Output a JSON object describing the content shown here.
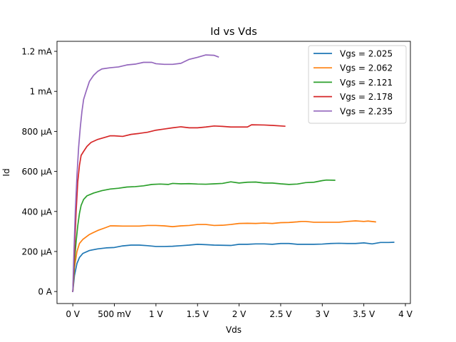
{
  "chart_data": {
    "type": "line",
    "title": "Id vs Vds",
    "xlabel": "Vds",
    "ylabel": "Id",
    "xlim": [
      -0.19,
      4.06
    ],
    "ylim": [
      -6e-05,
      0.00125
    ],
    "grid": false,
    "legend_position": "top-right",
    "x_ticks": [
      {
        "value": 0,
        "label": "0 V"
      },
      {
        "value": 0.5,
        "label": "500 mV"
      },
      {
        "value": 1,
        "label": "1 V"
      },
      {
        "value": 1.5,
        "label": "1.5 V"
      },
      {
        "value": 2,
        "label": "2 V"
      },
      {
        "value": 2.5,
        "label": "2.5 V"
      },
      {
        "value": 3,
        "label": "3 V"
      },
      {
        "value": 3.5,
        "label": "3.5 V"
      },
      {
        "value": 4,
        "label": "4 V"
      }
    ],
    "y_ticks": [
      {
        "value": 0,
        "label": "0 A"
      },
      {
        "value": 0.0002,
        "label": "200 µA"
      },
      {
        "value": 0.0004,
        "label": "400 µA"
      },
      {
        "value": 0.0006,
        "label": "600 µA"
      },
      {
        "value": 0.0008,
        "label": "800 µA"
      },
      {
        "value": 0.001,
        "label": "1 mA"
      },
      {
        "value": 0.0012,
        "label": "1.2 mA"
      }
    ],
    "series": [
      {
        "name": "Vgs = 2.025",
        "color": "#1f77b4",
        "points": [
          [
            0,
            0
          ],
          [
            0.02,
            8e-05
          ],
          [
            0.05,
            0.00014
          ],
          [
            0.08,
            0.00017
          ],
          [
            0.12,
            0.00019
          ],
          [
            0.2,
            0.000205
          ],
          [
            0.3,
            0.000213
          ],
          [
            0.4,
            0.000218
          ],
          [
            0.5,
            0.00022
          ],
          [
            0.6,
            0.000228
          ],
          [
            0.7,
            0.000232
          ],
          [
            0.8,
            0.000232
          ],
          [
            0.9,
            0.000229
          ],
          [
            1.0,
            0.000225
          ],
          [
            1.1,
            0.000225
          ],
          [
            1.2,
            0.000226
          ],
          [
            1.3,
            0.000229
          ],
          [
            1.4,
            0.000232
          ],
          [
            1.5,
            0.000236
          ],
          [
            1.6,
            0.000234
          ],
          [
            1.7,
            0.000232
          ],
          [
            1.8,
            0.000231
          ],
          [
            1.9,
            0.00023
          ],
          [
            2.0,
            0.000236
          ],
          [
            2.1,
            0.000236
          ],
          [
            2.2,
            0.000238
          ],
          [
            2.3,
            0.000238
          ],
          [
            2.4,
            0.000236
          ],
          [
            2.5,
            0.00024
          ],
          [
            2.6,
            0.00024
          ],
          [
            2.7,
            0.000236
          ],
          [
            2.8,
            0.000236
          ],
          [
            2.9,
            0.000236
          ],
          [
            3.0,
            0.000237
          ],
          [
            3.1,
            0.00024
          ],
          [
            3.2,
            0.000241
          ],
          [
            3.3,
            0.00024
          ],
          [
            3.4,
            0.00024
          ],
          [
            3.5,
            0.000243
          ],
          [
            3.6,
            0.000238
          ],
          [
            3.7,
            0.000245
          ],
          [
            3.8,
            0.000245
          ],
          [
            3.86,
            0.000246
          ]
        ]
      },
      {
        "name": "Vgs = 2.062",
        "color": "#ff7f0e",
        "points": [
          [
            0,
            0
          ],
          [
            0.02,
            0.00012
          ],
          [
            0.05,
            0.0002
          ],
          [
            0.08,
            0.00024
          ],
          [
            0.12,
            0.00026
          ],
          [
            0.2,
            0.000285
          ],
          [
            0.3,
            0.000305
          ],
          [
            0.4,
            0.00032
          ],
          [
            0.45,
            0.000328
          ],
          [
            0.5,
            0.000328
          ],
          [
            0.6,
            0.000327
          ],
          [
            0.7,
            0.000327
          ],
          [
            0.8,
            0.000327
          ],
          [
            0.9,
            0.00033
          ],
          [
            1.0,
            0.00033
          ],
          [
            1.1,
            0.000328
          ],
          [
            1.2,
            0.000324
          ],
          [
            1.3,
            0.000328
          ],
          [
            1.4,
            0.00033
          ],
          [
            1.5,
            0.000335
          ],
          [
            1.6,
            0.000335
          ],
          [
            1.7,
            0.00033
          ],
          [
            1.8,
            0.000331
          ],
          [
            1.9,
            0.000335
          ],
          [
            2.0,
            0.00034
          ],
          [
            2.1,
            0.000341
          ],
          [
            2.2,
            0.00034
          ],
          [
            2.3,
            0.000342
          ],
          [
            2.4,
            0.00034
          ],
          [
            2.5,
            0.000344
          ],
          [
            2.6,
            0.000345
          ],
          [
            2.7,
            0.000348
          ],
          [
            2.75,
            0.00035
          ],
          [
            2.8,
            0.00035
          ],
          [
            2.9,
            0.000346
          ],
          [
            3.0,
            0.000346
          ],
          [
            3.1,
            0.000346
          ],
          [
            3.2,
            0.000346
          ],
          [
            3.3,
            0.00035
          ],
          [
            3.4,
            0.000353
          ],
          [
            3.5,
            0.00035
          ],
          [
            3.55,
            0.000352
          ],
          [
            3.64,
            0.000348
          ]
        ]
      },
      {
        "name": "Vgs = 2.121",
        "color": "#2ca02c",
        "points": [
          [
            0,
            0
          ],
          [
            0.02,
            0.00015
          ],
          [
            0.04,
            0.00025
          ],
          [
            0.06,
            0.00033
          ],
          [
            0.08,
            0.00039
          ],
          [
            0.1,
            0.00043
          ],
          [
            0.13,
            0.00046
          ],
          [
            0.17,
            0.000478
          ],
          [
            0.25,
            0.000492
          ],
          [
            0.35,
            0.000504
          ],
          [
            0.45,
            0.000512
          ],
          [
            0.55,
            0.000516
          ],
          [
            0.65,
            0.000522
          ],
          [
            0.75,
            0.000524
          ],
          [
            0.85,
            0.000528
          ],
          [
            0.95,
            0.000535
          ],
          [
            1.05,
            0.000537
          ],
          [
            1.15,
            0.000535
          ],
          [
            1.2,
            0.00054
          ],
          [
            1.3,
            0.000538
          ],
          [
            1.4,
            0.000539
          ],
          [
            1.5,
            0.000537
          ],
          [
            1.6,
            0.000536
          ],
          [
            1.7,
            0.000538
          ],
          [
            1.8,
            0.00054
          ],
          [
            1.9,
            0.000548
          ],
          [
            2.0,
            0.000542
          ],
          [
            2.1,
            0.000546
          ],
          [
            2.2,
            0.000547
          ],
          [
            2.3,
            0.000542
          ],
          [
            2.4,
            0.000542
          ],
          [
            2.5,
            0.000538
          ],
          [
            2.6,
            0.000535
          ],
          [
            2.7,
            0.000537
          ],
          [
            2.8,
            0.000544
          ],
          [
            2.9,
            0.000546
          ],
          [
            3.0,
            0.000554
          ],
          [
            3.05,
            0.000557
          ],
          [
            3.15,
            0.000556
          ]
        ]
      },
      {
        "name": "Vgs = 2.178",
        "color": "#d62728",
        "points": [
          [
            0,
            0
          ],
          [
            0.02,
            0.0002
          ],
          [
            0.04,
            0.0004
          ],
          [
            0.06,
            0.00055
          ],
          [
            0.08,
            0.00063
          ],
          [
            0.1,
            0.00068
          ],
          [
            0.13,
            0.0007
          ],
          [
            0.17,
            0.000725
          ],
          [
            0.22,
            0.000745
          ],
          [
            0.3,
            0.00076
          ],
          [
            0.4,
            0.000772
          ],
          [
            0.45,
            0.000778
          ],
          [
            0.5,
            0.000778
          ],
          [
            0.6,
            0.000775
          ],
          [
            0.7,
            0.000785
          ],
          [
            0.8,
            0.00079
          ],
          [
            0.9,
            0.000796
          ],
          [
            1.0,
            0.000806
          ],
          [
            1.1,
            0.000812
          ],
          [
            1.2,
            0.000818
          ],
          [
            1.3,
            0.000823
          ],
          [
            1.4,
            0.000818
          ],
          [
            1.5,
            0.000818
          ],
          [
            1.6,
            0.000822
          ],
          [
            1.7,
            0.000827
          ],
          [
            1.8,
            0.000825
          ],
          [
            1.9,
            0.000822
          ],
          [
            2.0,
            0.000822
          ],
          [
            2.1,
            0.000822
          ],
          [
            2.15,
            0.000833
          ],
          [
            2.3,
            0.000832
          ],
          [
            2.4,
            0.00083
          ],
          [
            2.55,
            0.000826
          ]
        ]
      },
      {
        "name": "Vgs = 2.235",
        "color": "#9467bd",
        "points": [
          [
            0,
            0
          ],
          [
            0.01,
            0.00015
          ],
          [
            0.03,
            0.0004
          ],
          [
            0.05,
            0.00058
          ],
          [
            0.07,
            0.00072
          ],
          [
            0.09,
            0.00082
          ],
          [
            0.11,
            0.0009
          ],
          [
            0.13,
            0.00096
          ],
          [
            0.16,
            0.001
          ],
          [
            0.2,
            0.00105
          ],
          [
            0.25,
            0.00108
          ],
          [
            0.3,
            0.0011
          ],
          [
            0.35,
            0.001112
          ],
          [
            0.45,
            0.001118
          ],
          [
            0.55,
            0.001122
          ],
          [
            0.65,
            0.001132
          ],
          [
            0.75,
            0.001136
          ],
          [
            0.85,
            0.001145
          ],
          [
            0.95,
            0.001145
          ],
          [
            1.0,
            0.001138
          ],
          [
            1.1,
            0.001135
          ],
          [
            1.2,
            0.001135
          ],
          [
            1.3,
            0.00114
          ],
          [
            1.4,
            0.00116
          ],
          [
            1.5,
            0.00117
          ],
          [
            1.6,
            0.001182
          ],
          [
            1.7,
            0.00118
          ],
          [
            1.75,
            0.001172
          ]
        ]
      }
    ]
  }
}
